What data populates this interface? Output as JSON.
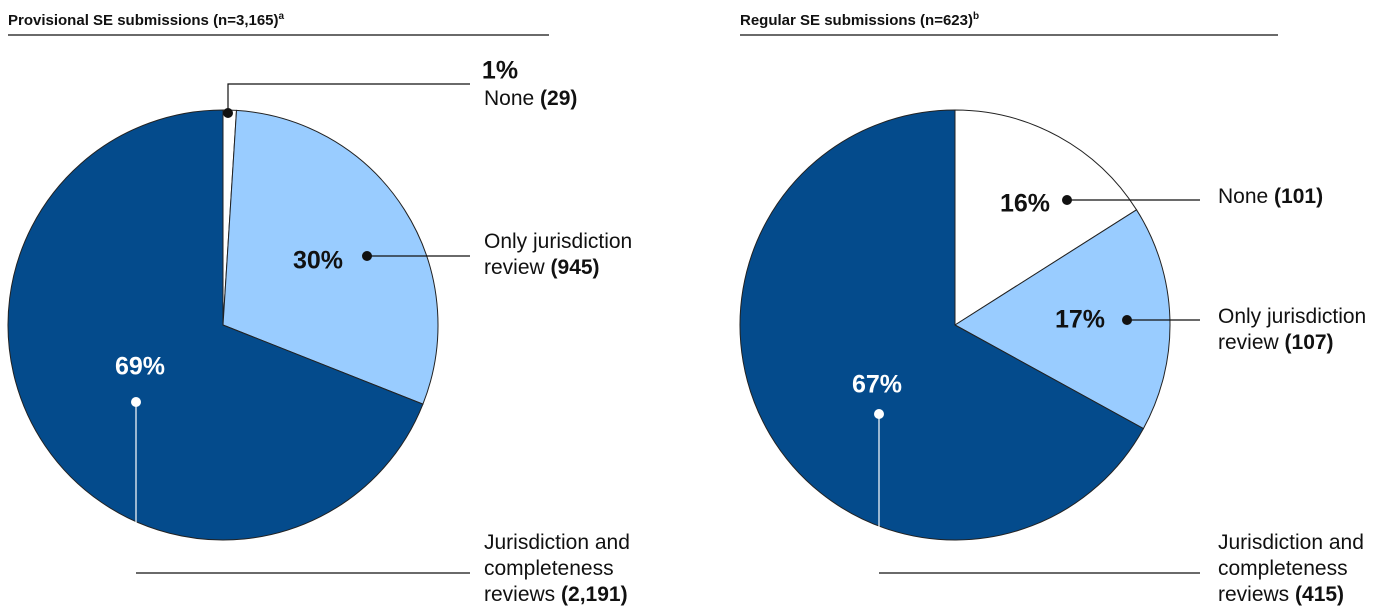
{
  "chart_data": [
    {
      "type": "pie",
      "title": "Provisional SE submissions (n=3,165)",
      "title_note": "a",
      "categories": [
        "None",
        "Only jurisdiction review",
        "Jurisdiction and completeness reviews"
      ],
      "values": [
        1,
        30,
        69
      ],
      "value_labels": [
        "1%",
        "30%",
        "69%"
      ],
      "counts": [
        29,
        945,
        2191
      ],
      "count_labels": [
        "(29)",
        "(945)",
        "(2,191)"
      ],
      "colors": [
        "#ffffff",
        "#99ccff",
        "#044b8c"
      ]
    },
    {
      "type": "pie",
      "title": "Regular SE submissions (n=623)",
      "title_note": "b",
      "categories": [
        "None",
        "Only jurisdiction review",
        "Jurisdiction and completeness reviews"
      ],
      "values": [
        16,
        17,
        67
      ],
      "value_labels": [
        "16%",
        "17%",
        "67%"
      ],
      "counts": [
        101,
        107,
        415
      ],
      "count_labels": [
        "(101)",
        "(107)",
        "(415)"
      ],
      "colors": [
        "#ffffff",
        "#99ccff",
        "#044b8c"
      ]
    }
  ]
}
